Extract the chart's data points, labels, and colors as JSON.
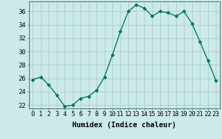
{
  "x": [
    0,
    1,
    2,
    3,
    4,
    5,
    6,
    7,
    8,
    9,
    10,
    11,
    12,
    13,
    14,
    15,
    16,
    17,
    18,
    19,
    20,
    21,
    22,
    23
  ],
  "y": [
    25.8,
    26.2,
    25.0,
    23.5,
    21.8,
    22.0,
    23.0,
    23.3,
    24.2,
    26.2,
    29.5,
    33.0,
    36.0,
    37.0,
    36.5,
    35.3,
    36.0,
    35.8,
    35.3,
    36.0,
    34.2,
    31.5,
    28.7,
    25.7
  ],
  "line_color": "#007755",
  "marker": "D",
  "marker_size": 2.5,
  "bg_color": "#cceaea",
  "grid_color": "#aacccc",
  "xlabel": "Humidex (Indice chaleur)",
  "ylabel_ticks": [
    22,
    24,
    26,
    28,
    30,
    32,
    34,
    36
  ],
  "ylim": [
    21.5,
    37.5
  ],
  "xlim": [
    -0.5,
    23.5
  ],
  "tick_fontsize": 6.5,
  "label_fontsize": 7.5
}
